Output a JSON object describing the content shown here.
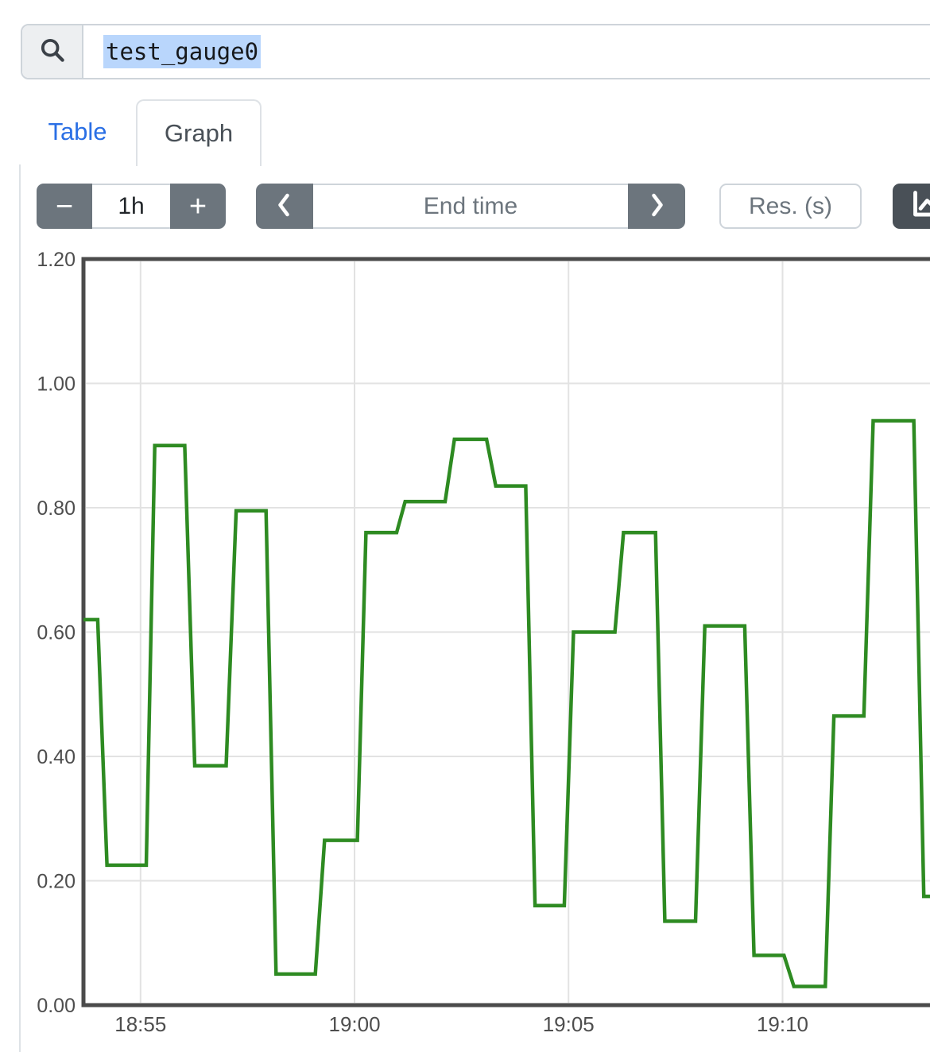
{
  "search": {
    "value": "test_gauge0",
    "icon": "magnifier"
  },
  "tabs": [
    {
      "label": "Table",
      "active": false
    },
    {
      "label": "Graph",
      "active": true
    }
  ],
  "toolbar": {
    "range_decrease": "−",
    "range_value": "1h",
    "range_increase": "+",
    "back_icon": "chevron-left",
    "end_time_placeholder": "End time",
    "forward_icon": "chevron-right",
    "res_placeholder": "Res. (s)",
    "graph_button_icon": "chart-line"
  },
  "colors": {
    "line_green": "#2e8b22",
    "tab_link_blue": "#2a6fe5",
    "button_gray": "#6c757d",
    "dark_button_gray": "#495057",
    "panel_border": "#dee2e6",
    "input_border": "#ced4da",
    "axis_border": "#4b4b4b",
    "grid_line": "#e2e2e2",
    "tick_text": "#4e4e4e",
    "selection_highlight": "#b9d6fc"
  },
  "chart_data": {
    "type": "line",
    "title": "",
    "xlabel": "",
    "ylabel": "",
    "x_unit": "seconds since 18:50:00",
    "x_range": [
      220,
      1429
    ],
    "y_range": [
      0,
      1.2
    ],
    "grid": true,
    "legend": "none",
    "x_ticks": [
      {
        "t": 300,
        "label": "18:55"
      },
      {
        "t": 600,
        "label": "19:00"
      },
      {
        "t": 900,
        "label": "19:05"
      },
      {
        "t": 1200,
        "label": "19:10"
      }
    ],
    "y_ticks": [
      {
        "v": 0.0,
        "label": "0.00"
      },
      {
        "v": 0.2,
        "label": "0.20"
      },
      {
        "v": 0.4,
        "label": "0.40"
      },
      {
        "v": 0.6,
        "label": "0.60"
      },
      {
        "v": 0.8,
        "label": "0.80"
      },
      {
        "v": 1.0,
        "label": "1.00"
      },
      {
        "v": 1.2,
        "label": "1.20"
      }
    ],
    "series": [
      {
        "name": "test_gauge0",
        "color": "#2e8b22",
        "points": [
          [
            220,
            0.62
          ],
          [
            240,
            0.62
          ],
          [
            253,
            0.225
          ],
          [
            308,
            0.225
          ],
          [
            320,
            0.9
          ],
          [
            362,
            0.9
          ],
          [
            376,
            0.385
          ],
          [
            420,
            0.385
          ],
          [
            434,
            0.795
          ],
          [
            476,
            0.795
          ],
          [
            490,
            0.05
          ],
          [
            545,
            0.05
          ],
          [
            558,
            0.265
          ],
          [
            604,
            0.265
          ],
          [
            616,
            0.76
          ],
          [
            659,
            0.76
          ],
          [
            671,
            0.81
          ],
          [
            727,
            0.81
          ],
          [
            740,
            0.91
          ],
          [
            785,
            0.91
          ],
          [
            798,
            0.835
          ],
          [
            840,
            0.835
          ],
          [
            853,
            0.16
          ],
          [
            894,
            0.16
          ],
          [
            907,
            0.6
          ],
          [
            965,
            0.6
          ],
          [
            977,
            0.76
          ],
          [
            1022,
            0.76
          ],
          [
            1035,
            0.135
          ],
          [
            1078,
            0.135
          ],
          [
            1091,
            0.61
          ],
          [
            1147,
            0.61
          ],
          [
            1160,
            0.08
          ],
          [
            1202,
            0.08
          ],
          [
            1216,
            0.03
          ],
          [
            1260,
            0.03
          ],
          [
            1272,
            0.465
          ],
          [
            1314,
            0.465
          ],
          [
            1327,
            0.94
          ],
          [
            1384,
            0.94
          ],
          [
            1398,
            0.175
          ],
          [
            1412,
            0.175
          ]
        ]
      }
    ]
  }
}
